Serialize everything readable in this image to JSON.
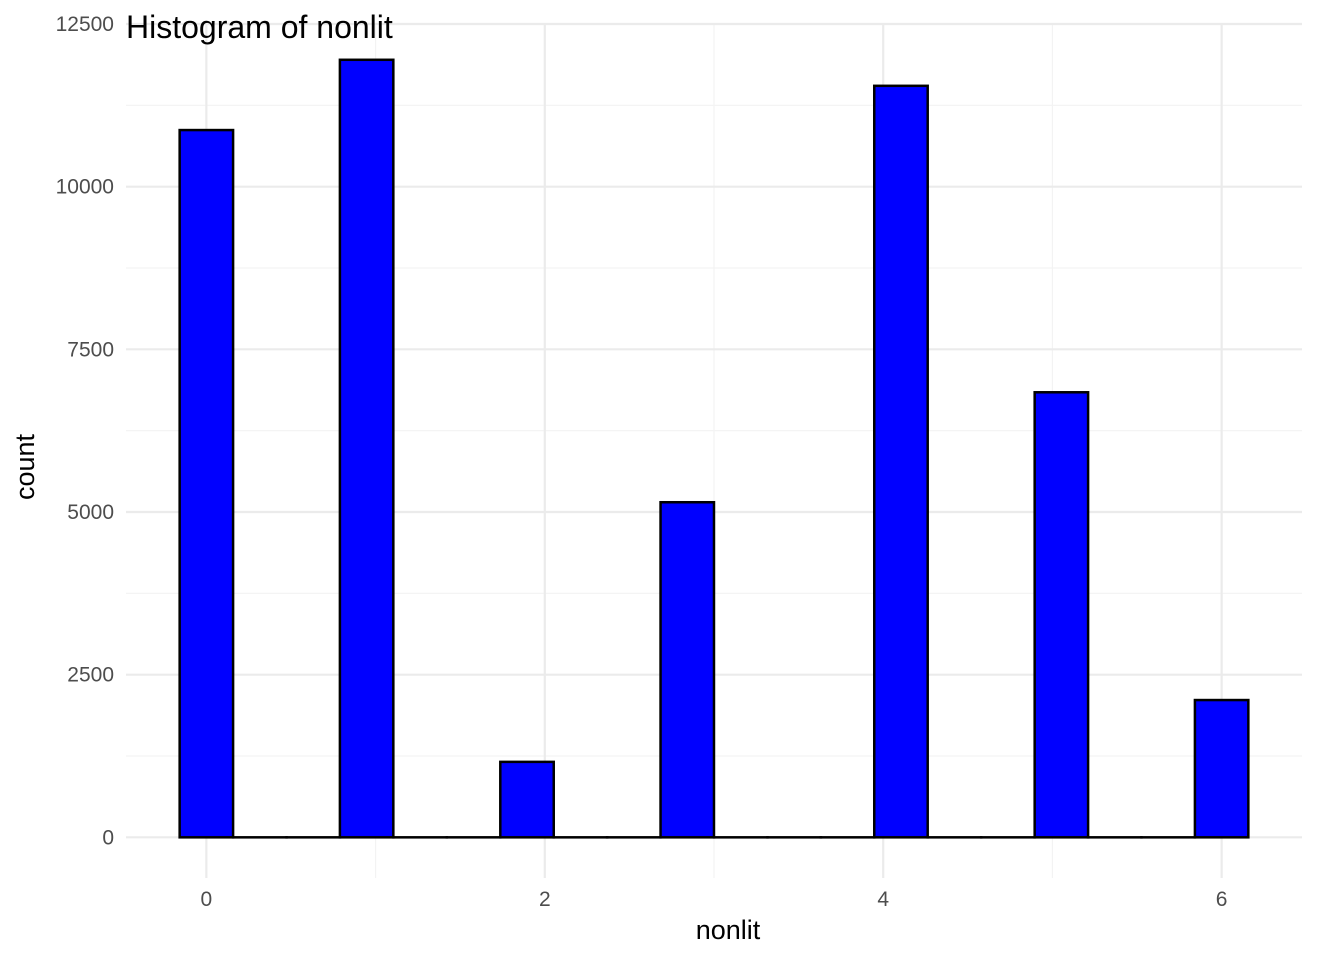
{
  "chart_data": {
    "type": "bar",
    "title": "Histogram of nonlit",
    "xlabel": "nonlit",
    "ylabel": "count",
    "xlim": [
      -0.475,
      6.475
    ],
    "ylim": [
      -625,
      12500
    ],
    "x_ticks": [
      0,
      2,
      4,
      6
    ],
    "x_minor_ticks": [
      1,
      3,
      5
    ],
    "y_ticks": [
      0,
      2500,
      5000,
      7500,
      10000,
      12500
    ],
    "y_minor_ticks": [
      1250,
      3750,
      6250,
      8750,
      11250
    ],
    "bin_width": 0.3158,
    "bins": [
      {
        "x": 0.0,
        "count": 10870
      },
      {
        "x": 0.316,
        "count": 0
      },
      {
        "x": 0.632,
        "count": 0
      },
      {
        "x": 0.947,
        "count": 11950
      },
      {
        "x": 1.263,
        "count": 0
      },
      {
        "x": 1.579,
        "count": 0
      },
      {
        "x": 1.895,
        "count": 1160
      },
      {
        "x": 2.211,
        "count": 0
      },
      {
        "x": 2.526,
        "count": 0
      },
      {
        "x": 2.842,
        "count": 5150
      },
      {
        "x": 3.158,
        "count": 0
      },
      {
        "x": 3.474,
        "count": 0
      },
      {
        "x": 3.789,
        "count": 0
      },
      {
        "x": 4.105,
        "count": 11550
      },
      {
        "x": 4.421,
        "count": 0
      },
      {
        "x": 4.737,
        "count": 0
      },
      {
        "x": 5.053,
        "count": 6840
      },
      {
        "x": 5.368,
        "count": 0
      },
      {
        "x": 5.684,
        "count": 0
      },
      {
        "x": 6.0,
        "count": 2110
      }
    ],
    "fill_color": "#0000ff",
    "outline_color": "#000000",
    "grid": true,
    "legend": "none"
  }
}
